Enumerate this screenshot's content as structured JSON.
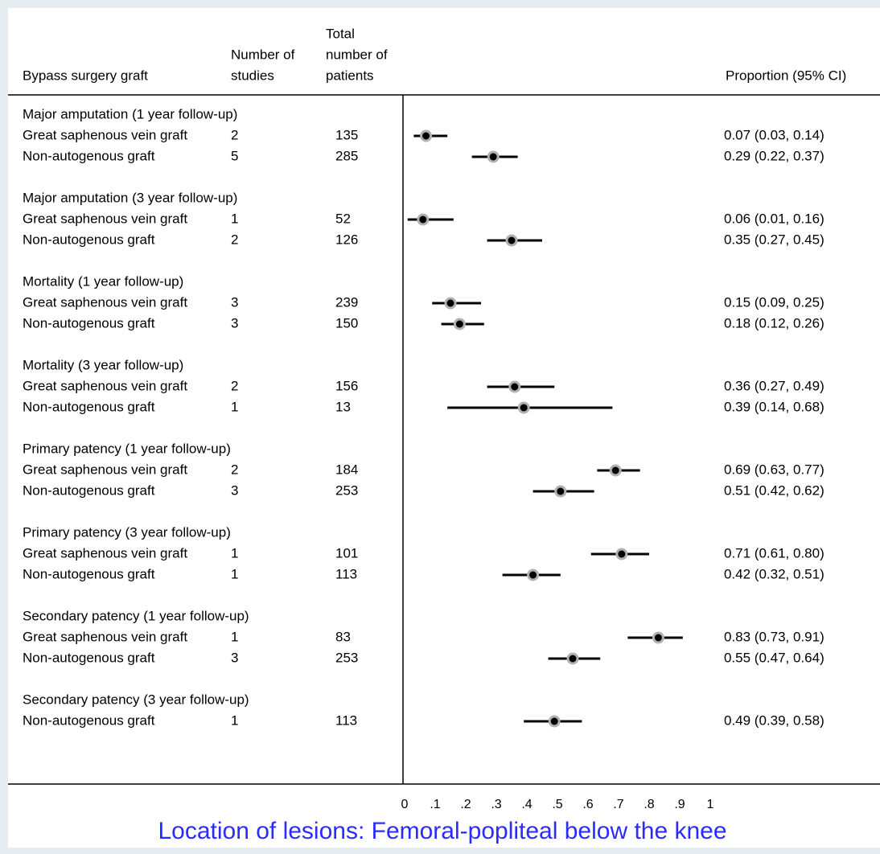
{
  "chart_data": {
    "type": "forest",
    "title": "Location of lesions: Femoral-popliteal below the knee",
    "headers": {
      "label": [
        "Bypass surgery graft"
      ],
      "studies": [
        "Number of",
        "studies"
      ],
      "patients": [
        "Total",
        "number of",
        "patients"
      ],
      "ci": [
        "Proportion (95% CI)"
      ]
    },
    "xlim": [
      0,
      1
    ],
    "xticks": [
      0,
      {
        "value": 0.1,
        "label": ".1"
      },
      {
        "value": 0.2,
        "label": ".2"
      },
      {
        "value": 0.3,
        "label": ".3"
      },
      {
        "value": 0.4,
        "label": ".4"
      },
      {
        "value": 0.5,
        "label": ".5"
      },
      {
        "value": 0.6,
        "label": ".6"
      },
      {
        "value": 0.7,
        "label": ".7"
      },
      {
        "value": 0.8,
        "label": ".8"
      },
      {
        "value": 0.9,
        "label": ".9"
      },
      1
    ],
    "groups": [
      {
        "name": "Major amputation (1 year follow-up)",
        "rows": [
          {
            "label": "Great saphenous vein graft",
            "studies": 2,
            "patients": 135,
            "estimate": 0.07,
            "ci_low": 0.03,
            "ci_high": 0.14,
            "ci_label": "0.07 (0.03, 0.14)"
          },
          {
            "label": "Non-autogenous graft",
            "studies": 5,
            "patients": 285,
            "estimate": 0.29,
            "ci_low": 0.22,
            "ci_high": 0.37,
            "ci_label": "0.29 (0.22, 0.37)"
          }
        ]
      },
      {
        "name": "Major amputation (3 year follow-up)",
        "rows": [
          {
            "label": "Great saphenous vein graft",
            "studies": 1,
            "patients": 52,
            "estimate": 0.06,
            "ci_low": 0.01,
            "ci_high": 0.16,
            "ci_label": "0.06 (0.01, 0.16)"
          },
          {
            "label": "Non-autogenous graft",
            "studies": 2,
            "patients": 126,
            "estimate": 0.35,
            "ci_low": 0.27,
            "ci_high": 0.45,
            "ci_label": "0.35 (0.27, 0.45)"
          }
        ]
      },
      {
        "name": "Mortality (1 year follow-up)",
        "rows": [
          {
            "label": "Great saphenous vein graft",
            "studies": 3,
            "patients": 239,
            "estimate": 0.15,
            "ci_low": 0.09,
            "ci_high": 0.25,
            "ci_label": "0.15 (0.09, 0.25)"
          },
          {
            "label": "Non-autogenous graft",
            "studies": 3,
            "patients": 150,
            "estimate": 0.18,
            "ci_low": 0.12,
            "ci_high": 0.26,
            "ci_label": "0.18 (0.12, 0.26)"
          }
        ]
      },
      {
        "name": "Mortality (3 year follow-up)",
        "rows": [
          {
            "label": "Great saphenous vein graft",
            "studies": 2,
            "patients": 156,
            "estimate": 0.36,
            "ci_low": 0.27,
            "ci_high": 0.49,
            "ci_label": "0.36 (0.27, 0.49)"
          },
          {
            "label": "Non-autogenous graft",
            "studies": 1,
            "patients": 13,
            "estimate": 0.39,
            "ci_low": 0.14,
            "ci_high": 0.68,
            "ci_label": "0.39 (0.14, 0.68)"
          }
        ]
      },
      {
        "name": "Primary patency (1 year follow-up)",
        "rows": [
          {
            "label": "Great saphenous vein graft",
            "studies": 2,
            "patients": 184,
            "estimate": 0.69,
            "ci_low": 0.63,
            "ci_high": 0.77,
            "ci_label": "0.69 (0.63, 0.77)"
          },
          {
            "label": "Non-autogenous graft",
            "studies": 3,
            "patients": 253,
            "estimate": 0.51,
            "ci_low": 0.42,
            "ci_high": 0.62,
            "ci_label": "0.51 (0.42, 0.62)"
          }
        ]
      },
      {
        "name": "Primary patency (3 year follow-up)",
        "rows": [
          {
            "label": "Great saphenous vein graft",
            "studies": 1,
            "patients": 101,
            "estimate": 0.71,
            "ci_low": 0.61,
            "ci_high": 0.8,
            "ci_label": "0.71 (0.61, 0.80)"
          },
          {
            "label": "Non-autogenous graft",
            "studies": 1,
            "patients": 113,
            "estimate": 0.42,
            "ci_low": 0.32,
            "ci_high": 0.51,
            "ci_label": "0.42 (0.32, 0.51)"
          }
        ]
      },
      {
        "name": "Secondary patency (1 year follow-up)",
        "rows": [
          {
            "label": "Great saphenous vein graft",
            "studies": 1,
            "patients": 83,
            "estimate": 0.83,
            "ci_low": 0.73,
            "ci_high": 0.91,
            "ci_label": "0.83 (0.73, 0.91)"
          },
          {
            "label": "Non-autogenous graft",
            "studies": 3,
            "patients": 253,
            "estimate": 0.55,
            "ci_low": 0.47,
            "ci_high": 0.64,
            "ci_label": "0.55 (0.47, 0.64)"
          }
        ]
      },
      {
        "name": "Secondary patency (3 year follow-up)",
        "rows": [
          {
            "label": "Non-autogenous graft",
            "studies": 1,
            "patients": 113,
            "estimate": 0.49,
            "ci_low": 0.39,
            "ci_high": 0.58,
            "ci_label": "0.49 (0.39, 0.58)"
          }
        ]
      }
    ]
  }
}
